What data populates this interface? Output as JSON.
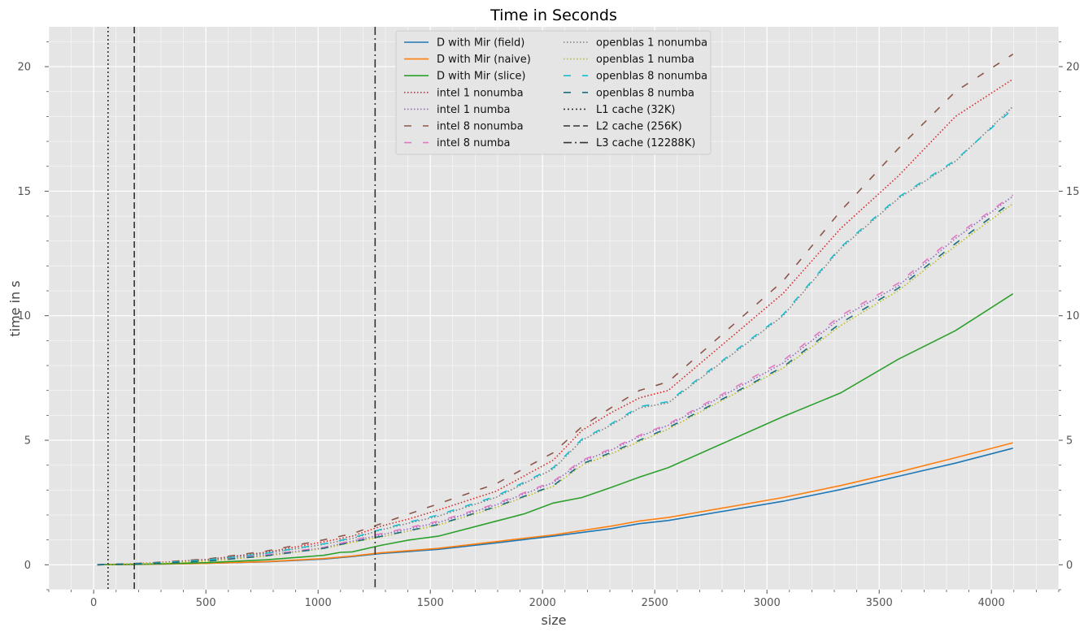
{
  "chart_data": {
    "type": "line",
    "title": "Time in Seconds",
    "xlabel": "size",
    "ylabel": "time in s",
    "xlim": [
      -200,
      4300
    ],
    "ylim": [
      -1,
      21.6
    ],
    "xticks": [
      0,
      500,
      1000,
      1500,
      2000,
      2500,
      3000,
      3500,
      4000
    ],
    "xtick_labels": [
      "0",
      "500",
      "1000",
      "1500",
      "2000",
      "2500",
      "3000",
      "3500",
      "4000"
    ],
    "yticks": [
      0,
      5,
      10,
      15,
      20
    ],
    "ytick_labels": [
      "0",
      "5",
      "10",
      "15",
      "20"
    ],
    "grid": true,
    "legend_position": "top-center",
    "series": [
      {
        "name": "D with Mir (field)",
        "color": "#1f77b4",
        "dash": "solid",
        "x": [
          16,
          256,
          512,
          768,
          1024,
          1152,
          1280,
          1536,
          1792,
          2048,
          2304,
          2432,
          2560,
          3072,
          3328,
          3584,
          3840,
          4096
        ],
        "y": [
          0,
          0.02,
          0.06,
          0.12,
          0.23,
          0.33,
          0.45,
          0.62,
          0.88,
          1.15,
          1.45,
          1.65,
          1.78,
          2.55,
          3.02,
          3.55,
          4.08,
          4.68
        ]
      },
      {
        "name": "D with Mir (naive)",
        "color": "#ff7f0e",
        "dash": "solid",
        "x": [
          16,
          256,
          512,
          768,
          1024,
          1152,
          1280,
          1536,
          1792,
          2048,
          2304,
          2432,
          2560,
          3072,
          3328,
          3584,
          3840,
          4096
        ],
        "y": [
          0,
          0.02,
          0.06,
          0.13,
          0.25,
          0.35,
          0.48,
          0.66,
          0.93,
          1.2,
          1.55,
          1.76,
          1.9,
          2.7,
          3.18,
          3.72,
          4.3,
          4.9
        ]
      },
      {
        "name": "D with Mir (slice)",
        "color": "#2ca02c",
        "dash": "solid",
        "x": [
          16,
          256,
          512,
          768,
          1024,
          1100,
          1152,
          1280,
          1408,
          1536,
          1792,
          1920,
          2048,
          2176,
          2304,
          2432,
          2560,
          3072,
          3328,
          3584,
          3840,
          4096
        ],
        "y": [
          0,
          0.03,
          0.09,
          0.2,
          0.38,
          0.5,
          0.52,
          0.78,
          1.0,
          1.15,
          1.75,
          2.05,
          2.48,
          2.7,
          3.1,
          3.52,
          3.9,
          5.95,
          6.9,
          8.25,
          9.4,
          10.88
        ]
      },
      {
        "name": "intel 1 nonumba",
        "color": "#d62728",
        "dash": "1.5,2.5",
        "x": [
          16,
          256,
          512,
          768,
          1024,
          1152,
          1280,
          1408,
          1536,
          1792,
          2048,
          2176,
          2304,
          2432,
          2560,
          3072,
          3328,
          3584,
          3840,
          4096
        ],
        "y": [
          0,
          0.07,
          0.22,
          0.5,
          0.92,
          1.15,
          1.55,
          1.85,
          2.2,
          2.95,
          4.2,
          5.4,
          6.1,
          6.7,
          7.0,
          10.9,
          13.5,
          15.6,
          18.0,
          19.5
        ]
      },
      {
        "name": "intel 1 numba",
        "color": "#9467bd",
        "dash": "1.5,2.5",
        "x": [
          16,
          256,
          512,
          768,
          1024,
          1152,
          1280,
          1536,
          1792,
          2048,
          2176,
          2304,
          2432,
          2560,
          3072,
          3328,
          3584,
          3840,
          4096
        ],
        "y": [
          0,
          0.05,
          0.16,
          0.38,
          0.68,
          0.95,
          1.2,
          1.7,
          2.4,
          3.3,
          4.15,
          4.6,
          5.15,
          5.6,
          8.1,
          9.9,
          11.2,
          13.1,
          14.8
        ]
      },
      {
        "name": "intel 8 nonumba",
        "color": "#8c564b",
        "dash": "9,14",
        "x": [
          16,
          256,
          512,
          768,
          1024,
          1152,
          1280,
          1408,
          1536,
          1792,
          2048,
          2176,
          2304,
          2432,
          2560,
          3072,
          3328,
          3584,
          3840,
          4096
        ],
        "y": [
          0,
          0.08,
          0.24,
          0.55,
          1.0,
          1.25,
          1.65,
          2.05,
          2.45,
          3.25,
          4.5,
          5.55,
          6.3,
          7.0,
          7.35,
          11.4,
          14.2,
          16.7,
          19.0,
          20.5
        ]
      },
      {
        "name": "intel 8 numba",
        "color": "#e377c2",
        "dash": "9,14",
        "x": [
          16,
          256,
          512,
          768,
          1024,
          1152,
          1280,
          1536,
          1792,
          2048,
          2176,
          2304,
          2432,
          2560,
          3072,
          3328,
          3584,
          3840,
          4096
        ],
        "y": [
          0,
          0.05,
          0.17,
          0.4,
          0.7,
          0.98,
          1.25,
          1.75,
          2.45,
          3.35,
          4.2,
          4.65,
          5.2,
          5.65,
          8.2,
          10.0,
          11.3,
          13.2,
          14.85
        ]
      },
      {
        "name": "openblas 1 nonumba",
        "color": "#7f7f7f",
        "dash": "1.5,2.5",
        "x": [
          16,
          256,
          512,
          768,
          1024,
          1152,
          1280,
          1408,
          1536,
          1792,
          2048,
          2176,
          2304,
          2432,
          2560,
          3072,
          3328,
          3584,
          3840,
          4096
        ],
        "y": [
          0,
          0.06,
          0.2,
          0.45,
          0.82,
          1.05,
          1.4,
          1.68,
          1.95,
          2.7,
          3.85,
          5.0,
          5.6,
          6.3,
          6.5,
          10.0,
          12.7,
          14.7,
          16.2,
          18.4
        ]
      },
      {
        "name": "openblas 1 numba",
        "color": "#bcbd22",
        "dash": "1.5,2.5",
        "x": [
          16,
          256,
          512,
          768,
          1024,
          1152,
          1280,
          1536,
          1792,
          2048,
          2176,
          2304,
          2432,
          2560,
          3072,
          3328,
          3584,
          3840,
          4096
        ],
        "y": [
          0,
          0.05,
          0.15,
          0.35,
          0.65,
          0.9,
          1.12,
          1.6,
          2.3,
          3.15,
          4.0,
          4.45,
          4.95,
          5.45,
          7.9,
          9.6,
          11.0,
          12.8,
          14.5
        ]
      },
      {
        "name": "openblas 8 nonumba",
        "color": "#17becf",
        "dash": "9,14",
        "x": [
          16,
          256,
          512,
          768,
          1024,
          1152,
          1280,
          1408,
          1536,
          1792,
          2048,
          2176,
          2304,
          2432,
          2560,
          3072,
          3328,
          3584,
          3840,
          4096
        ],
        "y": [
          0,
          0.06,
          0.2,
          0.46,
          0.84,
          1.08,
          1.42,
          1.72,
          2.0,
          2.75,
          3.9,
          5.05,
          5.65,
          6.35,
          6.55,
          10.05,
          12.75,
          14.75,
          16.25,
          18.3
        ]
      },
      {
        "name": "openblas 8 numba",
        "color": "#1a6e80",
        "dash": "9,14",
        "x": [
          16,
          256,
          512,
          768,
          1024,
          1152,
          1280,
          1536,
          1792,
          2048,
          2176,
          2304,
          2432,
          2560,
          3072,
          3328,
          3584,
          3840,
          4096
        ],
        "y": [
          0,
          0.05,
          0.15,
          0.36,
          0.66,
          0.92,
          1.14,
          1.62,
          2.33,
          3.18,
          4.05,
          4.5,
          5.0,
          5.5,
          7.95,
          9.7,
          11.1,
          12.9,
          14.6
        ]
      }
    ],
    "vlines": [
      {
        "name": "L1 cache (32K)",
        "x": 64,
        "color": "#333333",
        "dash": "2,3"
      },
      {
        "name": "L2 cache (256K)",
        "x": 181,
        "color": "#333333",
        "dash": "8,4"
      },
      {
        "name": "L3 cache (12288K)",
        "x": 1254,
        "color": "#333333",
        "dash": "10,4,2,4"
      }
    ]
  }
}
